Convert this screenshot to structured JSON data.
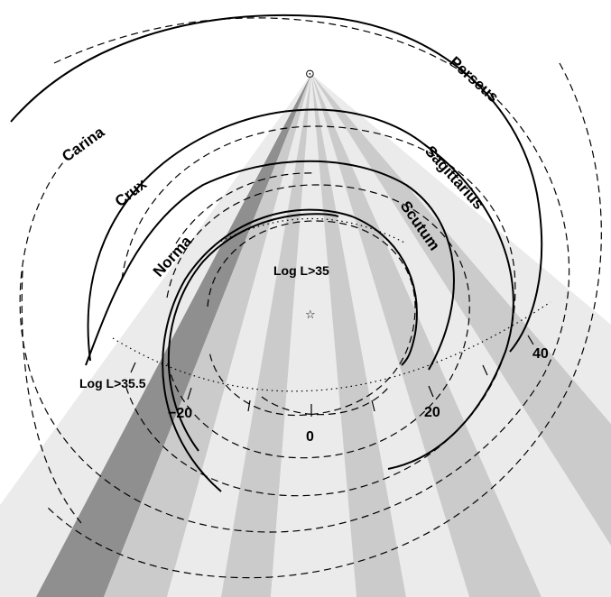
{
  "arms": {
    "perseus": "Perseus",
    "carina": "Carina",
    "sagittarius": "Sagittarius",
    "crux": "Crux",
    "scutum": "Scutum",
    "norma": "Norma"
  },
  "luminosity_limits": {
    "inner": "Log L>35",
    "outer": "Log L>35.5"
  },
  "longitude_ticks": {
    "t40": "40",
    "t20": "20",
    "t0": "0",
    "tm20": "−20"
  },
  "symbols": {
    "sun": "⊙",
    "galactic_center": "☆"
  },
  "colors": {
    "sector_light": "#ebebeb",
    "sector_mid": "#cbcbcb",
    "sector_dark": "#8f8f8f",
    "line": "#000000"
  }
}
